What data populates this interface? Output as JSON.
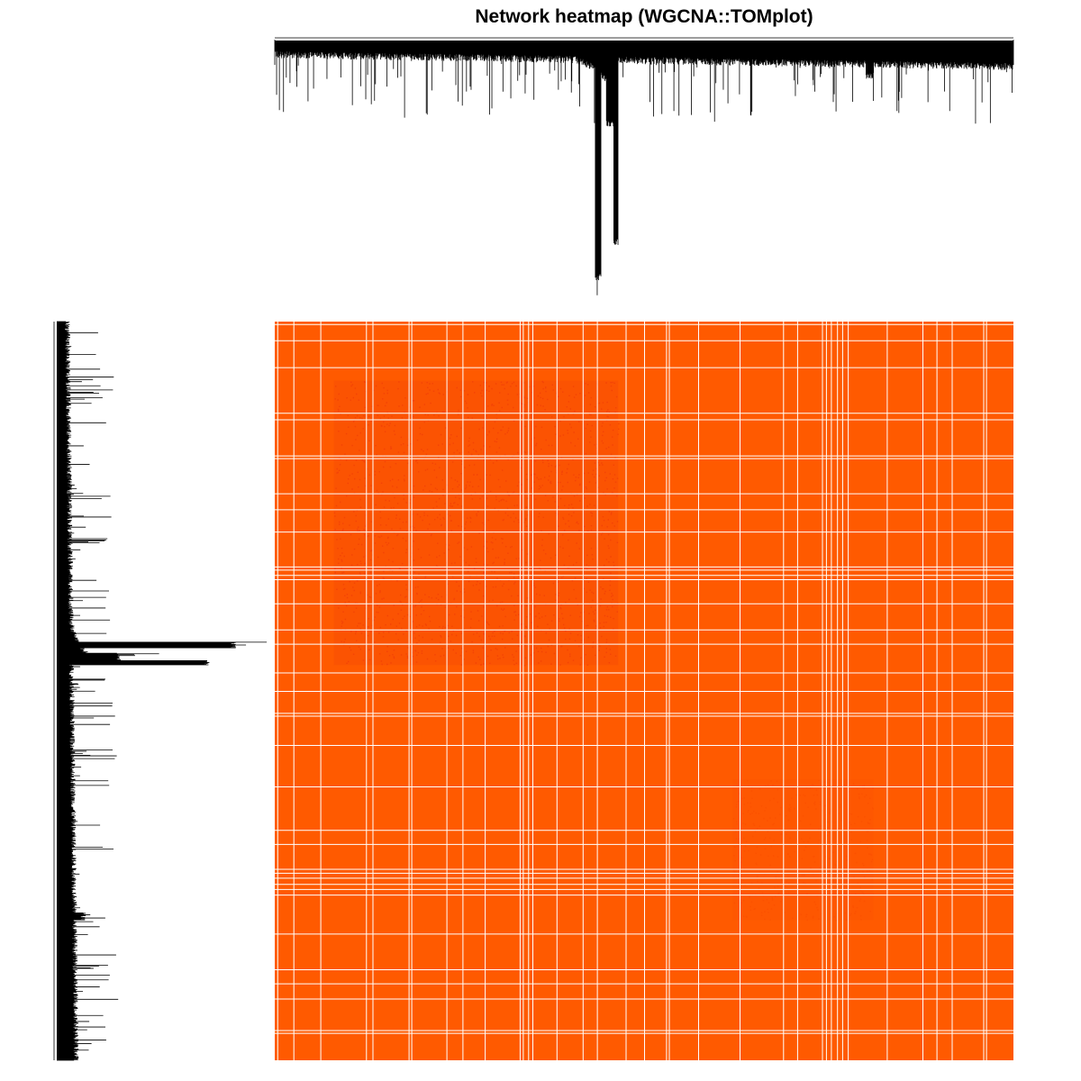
{
  "chart_data": {
    "type": "heatmap",
    "title": "Network heatmap (WGCNA::TOMplot)",
    "xlabel": "",
    "ylabel": "",
    "legend": "none",
    "grid": false,
    "colors": {
      "background": "#ffffff",
      "heatmap_base": "#ff5a00",
      "heatmap_dense": "#e8300a",
      "dendrogram": "#000000",
      "separator": "#ffffff"
    },
    "dendrogram": {
      "split_fraction": 0.465,
      "major_branch_heights": [
        0.0,
        0.3,
        0.75,
        1.0,
        0.95,
        0.4,
        0.3,
        0.2
      ]
    },
    "dense_blocks": [
      {
        "from": 0.08,
        "to": 0.465,
        "intensity": 0.45
      },
      {
        "from": 0.62,
        "to": 0.81,
        "intensity": 0.15
      }
    ]
  }
}
